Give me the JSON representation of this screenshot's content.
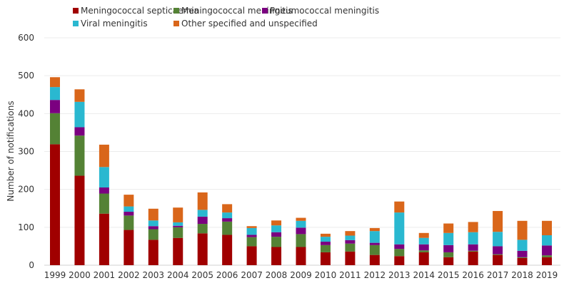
{
  "chart_data": {
    "type": "bar",
    "stacked": true,
    "title": "",
    "xlabel": "",
    "ylabel": "Number of notifications",
    "ylim": [
      0,
      600
    ],
    "yticks": [
      0,
      100,
      200,
      300,
      400,
      500,
      600
    ],
    "grid": true,
    "legend_position": "top",
    "categories": [
      "1999",
      "2000",
      "2001",
      "2002",
      "2003",
      "2004",
      "2005",
      "2006",
      "2007",
      "2008",
      "2009",
      "2010",
      "2011",
      "2012",
      "2013",
      "2014",
      "2015",
      "2016",
      "2017",
      "2018",
      "2019"
    ],
    "series": [
      {
        "name": "Meningococcal septicaemia",
        "color": "#a00000",
        "values": [
          319,
          236,
          136,
          93,
          67,
          72,
          84,
          80,
          50,
          48,
          48,
          34,
          36,
          27,
          24,
          34,
          21,
          36,
          27,
          19,
          21
        ]
      },
      {
        "name": "Meningococcal meningitis",
        "color": "#548235",
        "values": [
          82,
          106,
          53,
          38,
          28,
          28,
          25,
          35,
          24,
          27,
          34,
          19,
          21,
          26,
          19,
          5,
          13,
          2,
          2,
          2,
          5
        ]
      },
      {
        "name": "Pneumococcal meningitis",
        "color": "#7b0080",
        "values": [
          35,
          22,
          16,
          10,
          8,
          4,
          19,
          9,
          6,
          12,
          17,
          9,
          9,
          6,
          12,
          16,
          19,
          17,
          21,
          17,
          26
        ]
      },
      {
        "name": "Viral meningitis",
        "color": "#2ab8d0",
        "values": [
          34,
          67,
          54,
          14,
          15,
          9,
          18,
          15,
          18,
          18,
          18,
          13,
          12,
          31,
          84,
          17,
          32,
          32,
          38,
          29,
          27
        ]
      },
      {
        "name": "Other specified and unspecified",
        "color": "#d9661a",
        "values": [
          26,
          33,
          59,
          31,
          31,
          39,
          46,
          22,
          5,
          13,
          8,
          8,
          12,
          8,
          29,
          13,
          25,
          27,
          55,
          50,
          38
        ]
      }
    ]
  }
}
